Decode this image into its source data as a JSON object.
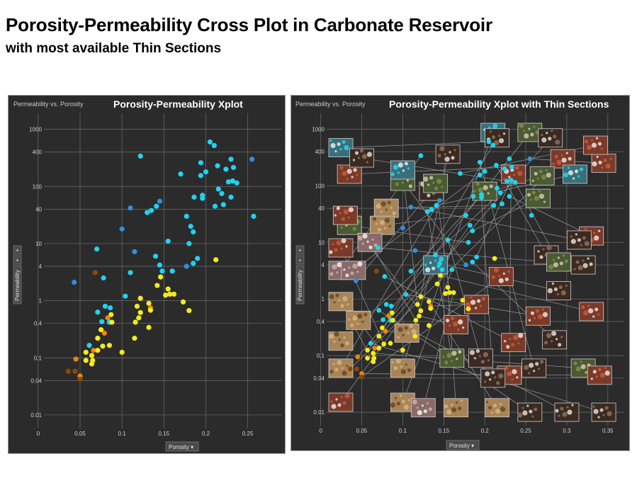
{
  "page": {
    "title": "Porosity-Permeability Cross Plot in Carbonate Reservoir",
    "subtitle": "with most available Thin Sections"
  },
  "colors": {
    "panel_bg": "#2b2b2b",
    "grid": "#6e6e6e",
    "cyan": "#1fd3f0",
    "blue": "#2f8fe0",
    "yellow": "#f4ec1a",
    "orange": "#e8880c",
    "brown": "#8a4a06"
  },
  "chart_data": [
    {
      "type": "scatter",
      "panel_label": "Permeability vs. Porosity",
      "title": "Porosity-Permeability Xplot",
      "xlabel": "Porosity",
      "ylabel": "Permeability",
      "x_scale": "linear",
      "y_scale": "log",
      "xlim": [
        -0.01,
        0.29
      ],
      "ylim": [
        0.0058,
        2200
      ],
      "xticks": [
        "0",
        "0.05",
        "0.1",
        "0.15",
        "0.2",
        "0.25"
      ],
      "yticks": [
        "0.01",
        "0.04",
        "0.1",
        "0.4",
        "1",
        "4",
        "10",
        "40",
        "100",
        "400",
        "1000"
      ],
      "grid": true,
      "x_dropdown": "Porosity ▾",
      "y_controls": [
        "+",
        "+"
      ],
      "points": [
        {
          "x": 0.205,
          "y": 600,
          "c": "cyan"
        },
        {
          "x": 0.21,
          "y": 520,
          "c": "cyan"
        },
        {
          "x": 0.122,
          "y": 340,
          "c": "cyan"
        },
        {
          "x": 0.255,
          "y": 300,
          "c": "blue"
        },
        {
          "x": 0.23,
          "y": 300,
          "c": "cyan"
        },
        {
          "x": 0.194,
          "y": 260,
          "c": "cyan"
        },
        {
          "x": 0.214,
          "y": 230,
          "c": "cyan"
        },
        {
          "x": 0.233,
          "y": 215,
          "c": "cyan"
        },
        {
          "x": 0.224,
          "y": 200,
          "c": "cyan"
        },
        {
          "x": 0.2,
          "y": 180,
          "c": "cyan"
        },
        {
          "x": 0.17,
          "y": 165,
          "c": "cyan"
        },
        {
          "x": 0.194,
          "y": 155,
          "c": "cyan"
        },
        {
          "x": 0.232,
          "y": 125,
          "c": "cyan"
        },
        {
          "x": 0.237,
          "y": 115,
          "c": "cyan"
        },
        {
          "x": 0.227,
          "y": 120,
          "c": "cyan"
        },
        {
          "x": 0.215,
          "y": 90,
          "c": "cyan"
        },
        {
          "x": 0.219,
          "y": 75,
          "c": "cyan"
        },
        {
          "x": 0.196,
          "y": 70,
          "c": "cyan"
        },
        {
          "x": 0.186,
          "y": 65,
          "c": "cyan"
        },
        {
          "x": 0.196,
          "y": 62,
          "c": "cyan"
        },
        {
          "x": 0.23,
          "y": 65,
          "c": "cyan"
        },
        {
          "x": 0.211,
          "y": 45,
          "c": "cyan"
        },
        {
          "x": 0.221,
          "y": 48,
          "c": "cyan"
        },
        {
          "x": 0.145,
          "y": 55,
          "c": "blue"
        },
        {
          "x": 0.141,
          "y": 45,
          "c": "cyan"
        },
        {
          "x": 0.135,
          "y": 38,
          "c": "cyan"
        },
        {
          "x": 0.13,
          "y": 35,
          "c": "cyan"
        },
        {
          "x": 0.11,
          "y": 42,
          "c": "blue"
        },
        {
          "x": 0.177,
          "y": 30,
          "c": "cyan"
        },
        {
          "x": 0.257,
          "y": 30,
          "c": "cyan"
        },
        {
          "x": 0.182,
          "y": 20,
          "c": "cyan"
        },
        {
          "x": 0.185,
          "y": 16,
          "c": "cyan"
        },
        {
          "x": 0.1,
          "y": 18,
          "c": "blue"
        },
        {
          "x": 0.155,
          "y": 11,
          "c": "cyan"
        },
        {
          "x": 0.07,
          "y": 8,
          "c": "cyan"
        },
        {
          "x": 0.18,
          "y": 10,
          "c": "cyan"
        },
        {
          "x": 0.115,
          "y": 7.2,
          "c": "blue"
        },
        {
          "x": 0.14,
          "y": 6,
          "c": "cyan"
        },
        {
          "x": 0.19,
          "y": 5.5,
          "c": "cyan"
        },
        {
          "x": 0.212,
          "y": 5.2,
          "c": "yellow"
        },
        {
          "x": 0.185,
          "y": 4.5,
          "c": "cyan"
        },
        {
          "x": 0.145,
          "y": 4.2,
          "c": "cyan"
        },
        {
          "x": 0.177,
          "y": 4,
          "c": "blue"
        },
        {
          "x": 0.148,
          "y": 3.3,
          "c": "cyan"
        },
        {
          "x": 0.16,
          "y": 3.3,
          "c": "cyan"
        },
        {
          "x": 0.11,
          "y": 3.1,
          "c": "cyan"
        },
        {
          "x": 0.068,
          "y": 3.1,
          "c": "brown"
        },
        {
          "x": 0.078,
          "y": 2.5,
          "c": "cyan"
        },
        {
          "x": 0.146,
          "y": 2.6,
          "c": "yellow"
        },
        {
          "x": 0.043,
          "y": 2.1,
          "c": "blue"
        },
        {
          "x": 0.142,
          "y": 1.85,
          "c": "yellow"
        },
        {
          "x": 0.155,
          "y": 1.6,
          "c": "yellow"
        },
        {
          "x": 0.157,
          "y": 1.3,
          "c": "yellow"
        },
        {
          "x": 0.152,
          "y": 1.25,
          "c": "yellow"
        },
        {
          "x": 0.162,
          "y": 1.3,
          "c": "yellow"
        },
        {
          "x": 0.104,
          "y": 1.2,
          "c": "cyan"
        },
        {
          "x": 0.122,
          "y": 1.1,
          "c": "yellow"
        },
        {
          "x": 0.173,
          "y": 0.95,
          "c": "yellow"
        },
        {
          "x": 0.132,
          "y": 0.9,
          "c": "yellow"
        },
        {
          "x": 0.118,
          "y": 0.8,
          "c": "yellow"
        },
        {
          "x": 0.08,
          "y": 0.8,
          "c": "cyan"
        },
        {
          "x": 0.086,
          "y": 0.75,
          "c": "cyan"
        },
        {
          "x": 0.134,
          "y": 0.75,
          "c": "orange"
        },
        {
          "x": 0.134,
          "y": 0.68,
          "c": "yellow"
        },
        {
          "x": 0.18,
          "y": 0.67,
          "c": "yellow"
        },
        {
          "x": 0.071,
          "y": 0.63,
          "c": "cyan"
        },
        {
          "x": 0.122,
          "y": 0.62,
          "c": "yellow"
        },
        {
          "x": 0.087,
          "y": 0.57,
          "c": "yellow"
        },
        {
          "x": 0.083,
          "y": 0.5,
          "c": "orange"
        },
        {
          "x": 0.12,
          "y": 0.5,
          "c": "yellow"
        },
        {
          "x": 0.076,
          "y": 0.43,
          "c": "cyan"
        },
        {
          "x": 0.085,
          "y": 0.42,
          "c": "cyan"
        },
        {
          "x": 0.088,
          "y": 0.42,
          "c": "yellow"
        },
        {
          "x": 0.116,
          "y": 0.42,
          "c": "yellow"
        },
        {
          "x": 0.132,
          "y": 0.34,
          "c": "yellow"
        },
        {
          "x": 0.075,
          "y": 0.31,
          "c": "yellow"
        },
        {
          "x": 0.079,
          "y": 0.27,
          "c": "orange"
        },
        {
          "x": 0.071,
          "y": 0.22,
          "c": "yellow"
        },
        {
          "x": 0.115,
          "y": 0.22,
          "c": "yellow"
        },
        {
          "x": 0.061,
          "y": 0.165,
          "c": "cyan"
        },
        {
          "x": 0.077,
          "y": 0.16,
          "c": "yellow"
        },
        {
          "x": 0.085,
          "y": 0.165,
          "c": "yellow"
        },
        {
          "x": 0.066,
          "y": 0.135,
          "c": "orange"
        },
        {
          "x": 0.071,
          "y": 0.135,
          "c": "yellow"
        },
        {
          "x": 0.057,
          "y": 0.125,
          "c": "yellow"
        },
        {
          "x": 0.1,
          "y": 0.125,
          "c": "yellow"
        },
        {
          "x": 0.064,
          "y": 0.11,
          "c": "yellow"
        },
        {
          "x": 0.045,
          "y": 0.095,
          "c": "orange"
        },
        {
          "x": 0.057,
          "y": 0.09,
          "c": "yellow"
        },
        {
          "x": 0.065,
          "y": 0.09,
          "c": "yellow"
        },
        {
          "x": 0.064,
          "y": 0.078,
          "c": "yellow"
        },
        {
          "x": 0.036,
          "y": 0.058,
          "c": "brown"
        },
        {
          "x": 0.044,
          "y": 0.058,
          "c": "brown"
        },
        {
          "x": 0.05,
          "y": 0.048,
          "c": "orange"
        },
        {
          "x": 0.05,
          "y": 0.042,
          "c": "brown"
        }
      ]
    },
    {
      "type": "scatter",
      "panel_label": "Permeability vs. Porosity",
      "title": "Porosity-Permeability Xplot with Thin Sections",
      "xlabel": "Porosity",
      "ylabel": "Permeability",
      "x_scale": "linear",
      "y_scale": "log",
      "xlim": [
        -0.01,
        0.37
      ],
      "ylim": [
        0.0058,
        2200
      ],
      "xticks": [
        "0",
        "0.05",
        "0.1",
        "0.15",
        "0.2",
        "0.25",
        "0.3",
        "0.35"
      ],
      "yticks": [
        "0.01",
        "0.04",
        "0.1",
        "0.4",
        "1",
        "4",
        "10",
        "40",
        "100",
        "400",
        "1000"
      ],
      "grid": true,
      "x_dropdown": "Porosity ▾",
      "y_controls": [
        "+",
        "+"
      ],
      "thin_sections": [
        {
          "x": 0.012,
          "y": 470,
          "t": "blue"
        },
        {
          "x": 0.035,
          "y": 160,
          "t": "red"
        },
        {
          "x": 0.05,
          "y": 310,
          "t": "dark"
        },
        {
          "x": 0.08,
          "y": 40,
          "t": "tan"
        },
        {
          "x": 0.075,
          "y": 20,
          "t": "tan"
        },
        {
          "x": 0.035,
          "y": 20,
          "t": "green"
        },
        {
          "x": 0.1,
          "y": 120,
          "t": "green"
        },
        {
          "x": 0.135,
          "y": 80,
          "t": "dark"
        },
        {
          "x": 0.155,
          "y": 360,
          "t": "dark"
        },
        {
          "x": 0.21,
          "y": 1200,
          "t": "blue"
        },
        {
          "x": 0.255,
          "y": 1350,
          "t": "green"
        },
        {
          "x": 0.215,
          "y": 700,
          "t": "dark"
        },
        {
          "x": 0.28,
          "y": 700,
          "t": "dark"
        },
        {
          "x": 0.295,
          "y": 300,
          "t": "red"
        },
        {
          "x": 0.345,
          "y": 250,
          "t": "red"
        },
        {
          "x": 0.335,
          "y": 520,
          "t": "red"
        },
        {
          "x": 0.27,
          "y": 150,
          "t": "green"
        },
        {
          "x": 0.31,
          "y": 160,
          "t": "blue"
        },
        {
          "x": 0.265,
          "y": 60,
          "t": "green"
        },
        {
          "x": 0.235,
          "y": 160,
          "t": "red"
        },
        {
          "x": 0.2,
          "y": 80,
          "t": "green"
        },
        {
          "x": 0.14,
          "y": 110,
          "t": "green"
        },
        {
          "x": 0.1,
          "y": 190,
          "t": "blue"
        },
        {
          "x": 0.03,
          "y": 30,
          "t": "red"
        },
        {
          "x": 0.06,
          "y": 10,
          "t": "pink"
        },
        {
          "x": 0.005,
          "y": 8,
          "t": "red"
        },
        {
          "x": 0.14,
          "y": 4,
          "t": "blue"
        },
        {
          "x": 0.22,
          "y": 2.5,
          "t": "red"
        },
        {
          "x": 0.275,
          "y": 6,
          "t": "dark"
        },
        {
          "x": 0.29,
          "y": 4.5,
          "t": "green"
        },
        {
          "x": 0.33,
          "y": 13,
          "t": "red"
        },
        {
          "x": 0.315,
          "y": 11,
          "t": "dark"
        },
        {
          "x": 0.32,
          "y": 4,
          "t": "dark"
        },
        {
          "x": 0.29,
          "y": 1.4,
          "t": "dark"
        },
        {
          "x": 0.33,
          "y": 0.6,
          "t": "red"
        },
        {
          "x": 0.265,
          "y": 0.5,
          "t": "red"
        },
        {
          "x": 0.19,
          "y": 0.8,
          "t": "red"
        },
        {
          "x": 0.165,
          "y": 0.35,
          "t": "red"
        },
        {
          "x": 0.105,
          "y": 0.25,
          "t": "tan"
        },
        {
          "x": 0.046,
          "y": 0.42,
          "t": "tan"
        },
        {
          "x": 0.005,
          "y": 0.9,
          "t": "tan"
        },
        {
          "x": 0.005,
          "y": 3.2,
          "t": "pink"
        },
        {
          "x": 0.04,
          "y": 3.2,
          "t": "pink"
        },
        {
          "x": 0.005,
          "y": 0.18,
          "t": "tan"
        },
        {
          "x": 0.005,
          "y": 0.06,
          "t": "tan"
        },
        {
          "x": 0.01,
          "y": 0.015,
          "t": "red"
        },
        {
          "x": 0.1,
          "y": 0.06,
          "t": "tan"
        },
        {
          "x": 0.1,
          "y": 0.015,
          "t": "tan"
        },
        {
          "x": 0.165,
          "y": 0.012,
          "t": "tan"
        },
        {
          "x": 0.215,
          "y": 0.012,
          "t": "tan"
        },
        {
          "x": 0.255,
          "y": 0.01,
          "t": "dark"
        },
        {
          "x": 0.3,
          "y": 0.01,
          "t": "dark"
        },
        {
          "x": 0.345,
          "y": 0.01,
          "t": "dark"
        },
        {
          "x": 0.32,
          "y": 0.06,
          "t": "green"
        },
        {
          "x": 0.34,
          "y": 0.045,
          "t": "red"
        },
        {
          "x": 0.26,
          "y": 0.06,
          "t": "dark"
        },
        {
          "x": 0.23,
          "y": 0.045,
          "t": "red"
        },
        {
          "x": 0.21,
          "y": 0.04,
          "t": "dark"
        },
        {
          "x": 0.16,
          "y": 0.09,
          "t": "green"
        },
        {
          "x": 0.195,
          "y": 0.09,
          "t": "dark"
        },
        {
          "x": 0.285,
          "y": 0.19,
          "t": "dark"
        },
        {
          "x": 0.235,
          "y": 0.17,
          "t": "red"
        },
        {
          "x": 0.125,
          "y": 0.012,
          "t": "pink"
        }
      ]
    }
  ]
}
